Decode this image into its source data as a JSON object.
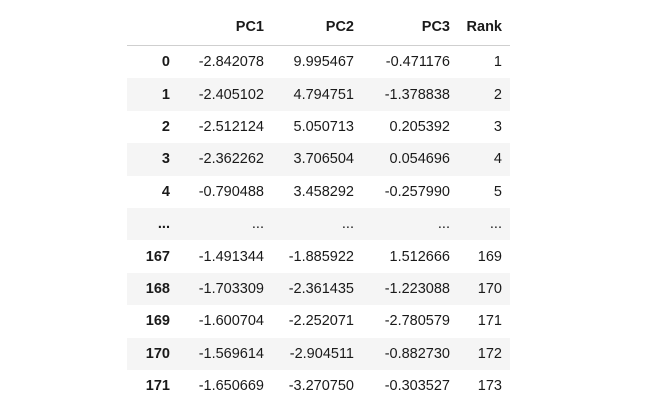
{
  "table": {
    "columns": [
      "",
      "PC1",
      "PC2",
      "PC3",
      "Rank"
    ],
    "rows": [
      {
        "index": "0",
        "pc1": "-2.842078",
        "pc2": "9.995467",
        "pc3": "-0.471176",
        "rank": "1"
      },
      {
        "index": "1",
        "pc1": "-2.405102",
        "pc2": "4.794751",
        "pc3": "-1.378838",
        "rank": "2"
      },
      {
        "index": "2",
        "pc1": "-2.512124",
        "pc2": "5.050713",
        "pc3": "0.205392",
        "rank": "3"
      },
      {
        "index": "3",
        "pc1": "-2.362262",
        "pc2": "3.706504",
        "pc3": "0.054696",
        "rank": "4"
      },
      {
        "index": "4",
        "pc1": "-0.790488",
        "pc2": "3.458292",
        "pc3": "-0.257990",
        "rank": "5"
      },
      {
        "index": "...",
        "pc1": "...",
        "pc2": "...",
        "pc3": "...",
        "rank": "..."
      },
      {
        "index": "167",
        "pc1": "-1.491344",
        "pc2": "-1.885922",
        "pc3": "1.512666",
        "rank": "169"
      },
      {
        "index": "168",
        "pc1": "-1.703309",
        "pc2": "-2.361435",
        "pc3": "-1.223088",
        "rank": "170"
      },
      {
        "index": "169",
        "pc1": "-1.600704",
        "pc2": "-2.252071",
        "pc3": "-2.780579",
        "rank": "171"
      },
      {
        "index": "170",
        "pc1": "-1.569614",
        "pc2": "-2.904511",
        "pc3": "-0.882730",
        "rank": "172"
      },
      {
        "index": "171",
        "pc1": "-1.650669",
        "pc2": "-3.270750",
        "pc3": "-0.303527",
        "rank": "173"
      }
    ]
  }
}
